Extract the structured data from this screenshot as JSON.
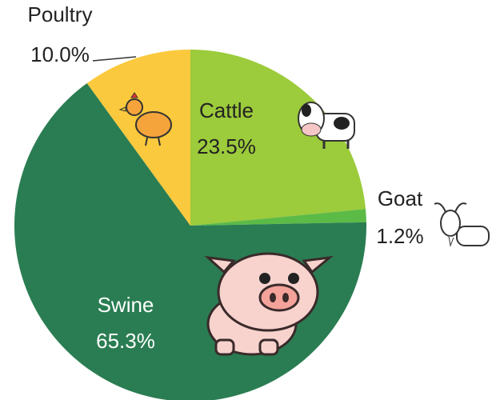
{
  "chart_data": {
    "type": "pie",
    "categories": [
      "Cattle",
      "Goat",
      "Swine",
      "Poultry"
    ],
    "values": [
      23.5,
      1.2,
      65.3,
      10.0
    ],
    "value_labels": [
      "23.5%",
      "1.2%",
      "65.3%",
      "10.0%"
    ],
    "colors": [
      "#9ccb3b",
      "#5cba47",
      "#2a7d52",
      "#fbc93d"
    ],
    "start_angle": 90,
    "direction": "clockwise"
  }
}
